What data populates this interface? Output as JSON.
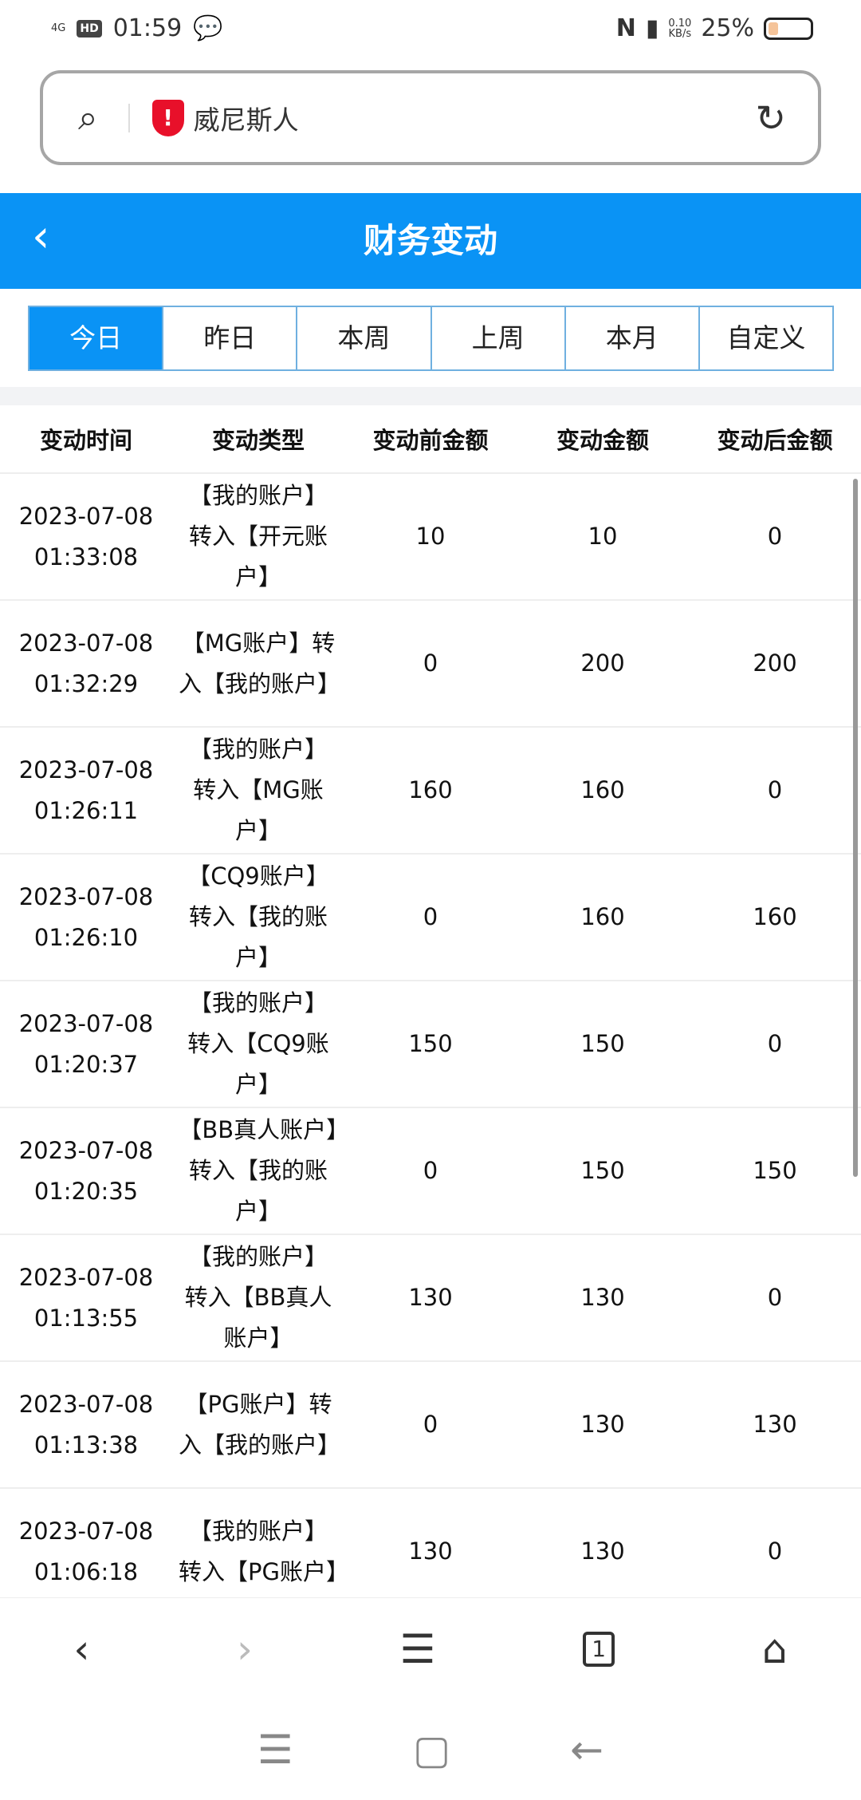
{
  "status": {
    "network": "4G",
    "hd": "HD",
    "time": "01:59",
    "speed": "0.10",
    "speed_unit": "KB/s",
    "battery": "25%",
    "battery_level": 25
  },
  "urlbar": {
    "text": "威尼斯人"
  },
  "header": {
    "title": "财务变动"
  },
  "tabs": [
    {
      "label": "今日",
      "active": true
    },
    {
      "label": "昨日"
    },
    {
      "label": "本周"
    },
    {
      "label": "上周"
    },
    {
      "label": "本月"
    },
    {
      "label": "自定义"
    }
  ],
  "table": {
    "headers": [
      "变动时间",
      "变动类型",
      "变动前金额",
      "变动金额",
      "变动后金额"
    ],
    "rows": [
      {
        "time": "2023-07-08 01:33:08",
        "type": "【我的账户】转入【开元账户】",
        "before": "10",
        "amount": "10",
        "after": "0"
      },
      {
        "time": "2023-07-08 01:32:29",
        "type": "【MG账户】转入【我的账户】",
        "before": "0",
        "amount": "200",
        "after": "200"
      },
      {
        "time": "2023-07-08 01:26:11",
        "type": "【我的账户】转入【MG账户】",
        "before": "160",
        "amount": "160",
        "after": "0"
      },
      {
        "time": "2023-07-08 01:26:10",
        "type": "【CQ9账户】转入【我的账户】",
        "before": "0",
        "amount": "160",
        "after": "160"
      },
      {
        "time": "2023-07-08 01:20:37",
        "type": "【我的账户】转入【CQ9账户】",
        "before": "150",
        "amount": "150",
        "after": "0"
      },
      {
        "time": "2023-07-08 01:20:35",
        "type": "【BB真人账户】转入【我的账户】",
        "before": "0",
        "amount": "150",
        "after": "150"
      },
      {
        "time": "2023-07-08 01:13:55",
        "type": "【我的账户】转入【BB真人账户】",
        "before": "130",
        "amount": "130",
        "after": "0"
      },
      {
        "time": "2023-07-08 01:13:38",
        "type": "【PG账户】转入【我的账户】",
        "before": "0",
        "amount": "130",
        "after": "130"
      },
      {
        "time": "2023-07-08 01:06:18",
        "type": "【我的账户】转入【PG账户】",
        "before": "130",
        "amount": "130",
        "after": "0"
      }
    ]
  },
  "browser_nav": {
    "tab_count": "1"
  }
}
